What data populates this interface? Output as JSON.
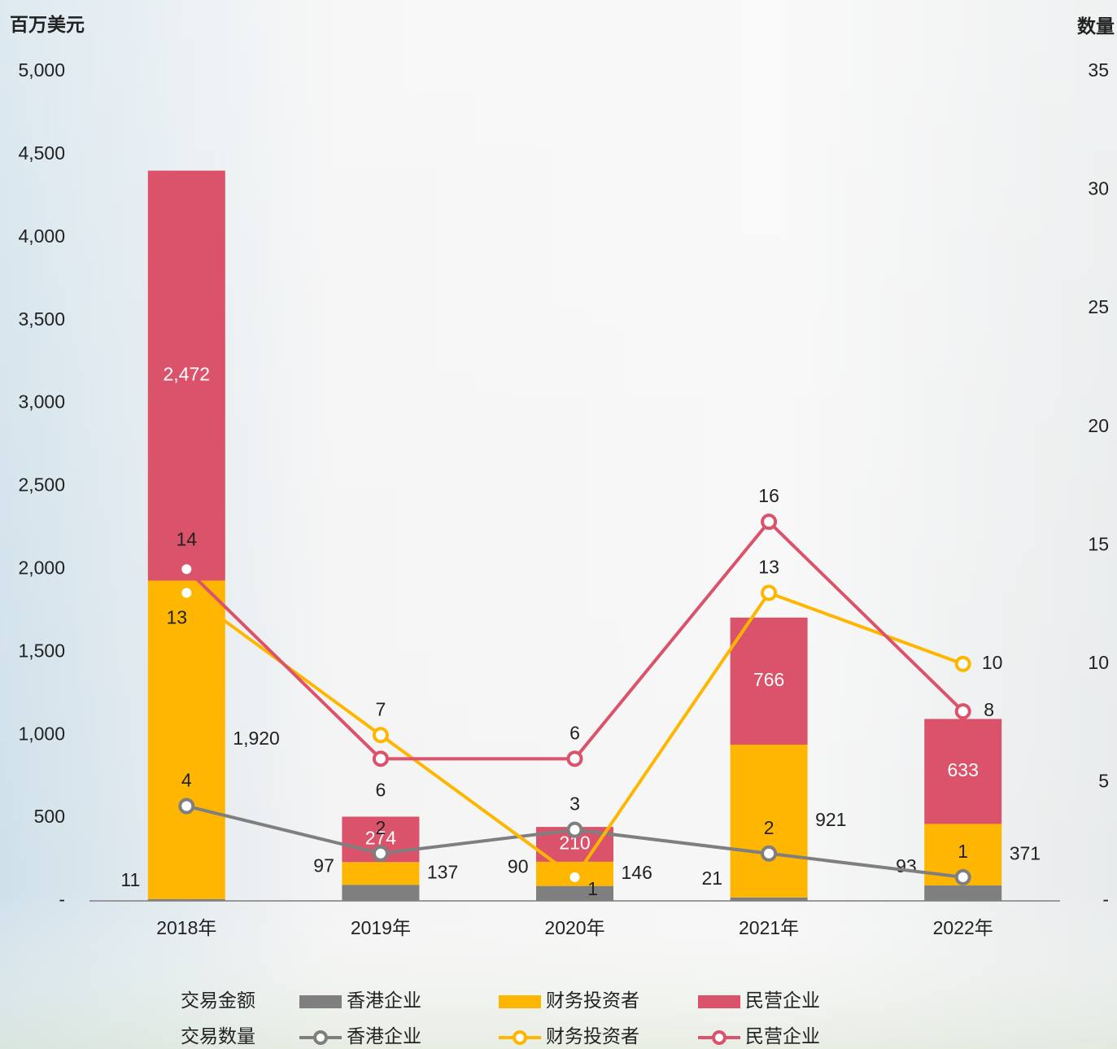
{
  "chart_data": {
    "type": "bar_line",
    "y_title": "百万美元",
    "y2_title": "数量",
    "categories": [
      "2018年",
      "2019年",
      "2020年",
      "2021年",
      "2022年"
    ],
    "legend_titles": [
      "交易金额",
      "交易数量"
    ],
    "series": [
      {
        "name": "香港企业",
        "type": "bar",
        "color": "#7f7f7f",
        "values": [
          11,
          97,
          90,
          21,
          93
        ]
      },
      {
        "name": "财务投资者",
        "type": "bar",
        "color": "#ffb600",
        "values": [
          1920,
          137,
          146,
          921,
          371
        ],
        "value_labels": [
          "1,920",
          "137",
          "146",
          "921",
          "371"
        ]
      },
      {
        "name": "民营企业",
        "type": "bar",
        "color": "#db536a",
        "values": [
          2472,
          274,
          210,
          766,
          633
        ],
        "value_labels": [
          "2,472",
          "274",
          "210",
          "766",
          "633"
        ]
      },
      {
        "name": "香港企业",
        "type": "line",
        "axis": "y2",
        "color": "#7f7f7f",
        "values": [
          4,
          2,
          3,
          2,
          1
        ]
      },
      {
        "name": "财务投资者",
        "type": "line",
        "axis": "y2",
        "color": "#ffb600",
        "values": [
          13,
          7,
          1,
          13,
          10
        ]
      },
      {
        "name": "民营企业",
        "type": "line",
        "axis": "y2",
        "color": "#db536a",
        "values": [
          14,
          6,
          6,
          16,
          8
        ]
      }
    ],
    "ylim": [
      0,
      5000
    ],
    "yticks": [
      {
        "value": 0,
        "label": "-"
      },
      500,
      {
        "value": 1000,
        "label": "1,000"
      },
      {
        "value": 1500,
        "label": "1,500"
      },
      {
        "value": 2000,
        "label": "2,000"
      },
      {
        "value": 2500,
        "label": "2,500"
      },
      {
        "value": 3000,
        "label": "3,000"
      },
      {
        "value": 3500,
        "label": "3,500"
      },
      {
        "value": 4000,
        "label": "4,000"
      },
      {
        "value": 4500,
        "label": "4,500"
      },
      {
        "value": 5000,
        "label": "5,000"
      }
    ],
    "y2lim": [
      0,
      35
    ],
    "y2ticks": [
      {
        "value": 0,
        "label": "-"
      },
      5,
      10,
      15,
      20,
      25,
      30,
      35
    ]
  }
}
